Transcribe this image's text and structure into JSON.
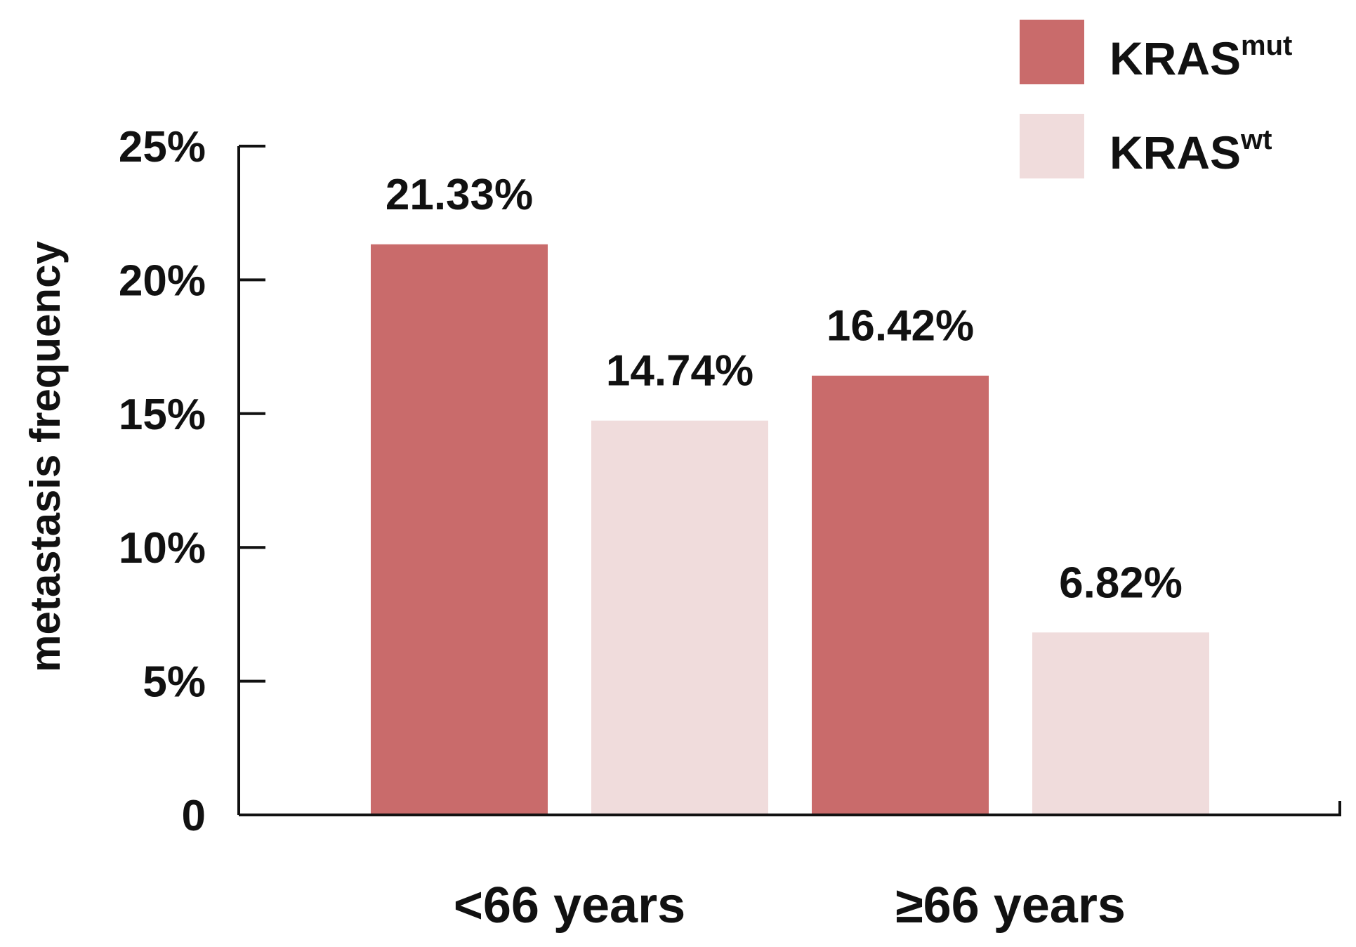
{
  "chart_data": {
    "type": "bar",
    "categories": [
      "<66 years",
      "≥66 years"
    ],
    "series": [
      {
        "name": "KRAS",
        "name_sup": "mut",
        "color": "#c96b6b",
        "values": [
          21.33,
          16.42
        ],
        "labels": [
          "21.33%",
          "16.42%"
        ]
      },
      {
        "name": "KRAS",
        "name_sup": "wt",
        "color": "#f0dcdc",
        "values": [
          14.74,
          6.82
        ],
        "labels": [
          "14.74%",
          "6.82%"
        ]
      }
    ],
    "ylabel": "metastasis frequency",
    "ylim": [
      0,
      25
    ],
    "yticks": [
      0,
      5,
      10,
      15,
      20,
      25
    ],
    "ytick_labels": [
      "0",
      "5%",
      "10%",
      "15%",
      "20%",
      "25%"
    ],
    "legend_position": "top-right",
    "grid": false
  }
}
